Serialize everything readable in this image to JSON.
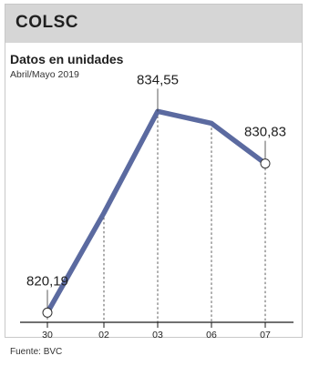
{
  "header": {
    "title": "COLSC"
  },
  "chart_data": {
    "type": "line",
    "title": "Datos en unidades",
    "subtitle": "Abril/Mayo 2019",
    "categories": [
      "30",
      "02",
      "03",
      "06",
      "07"
    ],
    "series": [
      {
        "values": [
          820.19,
          827.3,
          834.55,
          833.7,
          830.83
        ]
      }
    ],
    "data_labels": [
      {
        "category": "30",
        "text": "820,19"
      },
      {
        "category": "03",
        "text": "834,55"
      },
      {
        "category": "07",
        "text": "830,83"
      }
    ],
    "ylim": [
      819.5,
      836.0
    ],
    "grid": "vertical dashed lines at each category",
    "colors": {
      "line": "#5b6aa0",
      "marker_fill": "#ffffff",
      "header_bg": "#d6d6d6"
    }
  },
  "footer": {
    "source": "Fuente: BVC"
  }
}
